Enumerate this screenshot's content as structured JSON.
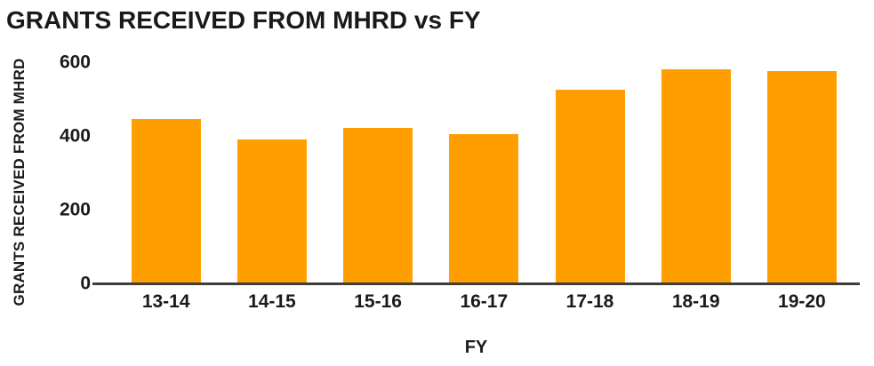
{
  "chart_data": {
    "type": "bar",
    "title": "GRANTS RECEIVED FROM MHRD vs FY",
    "categories": [
      "13-14",
      "14-15",
      "15-16",
      "16-17",
      "17-18",
      "18-19",
      "19-20"
    ],
    "values": [
      445,
      390,
      420,
      405,
      525,
      580,
      575
    ],
    "xlabel": "FY",
    "ylabel": "GRANTS RECEIVED FROM MHRD",
    "ylim": [
      0,
      600
    ],
    "yticks": [
      0,
      200,
      400,
      600
    ],
    "grid": false,
    "legend": "none",
    "bar_color": "#ff9e00",
    "axis_line_color": "#3d3d3d",
    "text_color": "#1a1a1a",
    "background_color": "#ffffff"
  }
}
